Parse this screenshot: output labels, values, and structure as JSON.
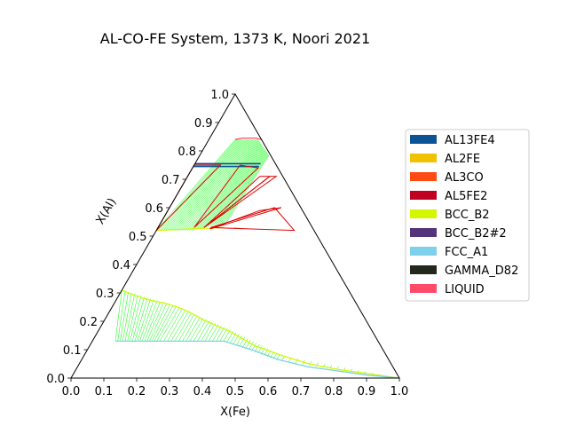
{
  "chart_data": {
    "type": "ternary-phase-diagram",
    "title": "AL-CO-FE System, 1373 K, Noori 2021",
    "xlabel": "X(Fe)",
    "ylabel": "X(Al)",
    "xlim": [
      0,
      1
    ],
    "ylim": [
      0,
      1
    ],
    "x_ticks": [
      "0.0",
      "0.1",
      "0.2",
      "0.3",
      "0.4",
      "0.5",
      "0.6",
      "0.7",
      "0.8",
      "0.9",
      "1.0"
    ],
    "y_ticks": [
      "0.0",
      "0.1",
      "0.2",
      "0.3",
      "0.4",
      "0.5",
      "0.6",
      "0.7",
      "0.8",
      "0.9",
      "1.0"
    ],
    "legend_position": "right",
    "legend": [
      {
        "name": "AL13FE4",
        "color": "#0b5394"
      },
      {
        "name": "AL2FE",
        "color": "#f2c200"
      },
      {
        "name": "AL3CO",
        "color": "#ff4a12"
      },
      {
        "name": "AL5FE2",
        "color": "#c0001f"
      },
      {
        "name": "BCC_B2",
        "color": "#d4f700"
      },
      {
        "name": "BCC_B2#2",
        "color": "#55337a"
      },
      {
        "name": "FCC_A1",
        "color": "#7fd0ea"
      },
      {
        "name": "GAMMA_D82",
        "color": "#22281a"
      },
      {
        "name": "LIQUID",
        "color": "#ff4a6a"
      }
    ],
    "tieline_color": "#00ff00",
    "tieline_regions": [
      {
        "name": "FCC_A1 + BCC_B2",
        "end_a": [
          [
            0.07,
            0.13
          ],
          [
            0.2,
            0.13
          ],
          [
            0.4,
            0.13
          ],
          [
            0.6,
            0.06
          ],
          [
            1.0,
            0.0
          ]
        ],
        "end_b": [
          [
            0.0,
            0.31
          ],
          [
            0.2,
            0.25
          ],
          [
            0.4,
            0.17
          ],
          [
            0.6,
            0.08
          ],
          [
            1.0,
            0.0
          ]
        ],
        "count": 70
      },
      {
        "name": "LIQUID + BCC_B2",
        "end_a": [
          [
            0.08,
            0.84
          ],
          [
            0.15,
            0.84
          ],
          [
            0.21,
            0.785
          ]
        ],
        "end_b": [
          [
            0.0,
            0.52
          ],
          [
            0.11,
            0.52
          ],
          [
            0.2,
            0.55
          ]
        ],
        "count": 40
      }
    ],
    "phase_boundaries": [
      {
        "phase": "BCC_B2",
        "color": "#d4f700",
        "points": [
          [
            0.0,
            0.31
          ],
          [
            0.05,
            0.29
          ],
          [
            0.1,
            0.275
          ],
          [
            0.15,
            0.265
          ],
          [
            0.2,
            0.25
          ],
          [
            0.25,
            0.23
          ],
          [
            0.3,
            0.205
          ],
          [
            0.35,
            0.185
          ],
          [
            0.4,
            0.165
          ],
          [
            0.45,
            0.14
          ],
          [
            0.5,
            0.115
          ],
          [
            0.6,
            0.08
          ],
          [
            0.7,
            0.05
          ],
          [
            0.8,
            0.03
          ],
          [
            0.9,
            0.015
          ],
          [
            1.0,
            0.0
          ]
        ]
      },
      {
        "phase": "FCC_A1",
        "color": "#7fd0ea",
        "points": [
          [
            0.07,
            0.13
          ],
          [
            0.1,
            0.13
          ],
          [
            0.2,
            0.13
          ],
          [
            0.3,
            0.13
          ],
          [
            0.4,
            0.13
          ],
          [
            0.5,
            0.1
          ],
          [
            0.6,
            0.065
          ],
          [
            0.7,
            0.04
          ],
          [
            0.8,
            0.025
          ],
          [
            0.9,
            0.01
          ],
          [
            1.0,
            0.0
          ]
        ]
      },
      {
        "phase": "BCC_B2",
        "color": "#d4f700",
        "points": [
          [
            0.0,
            0.52
          ],
          [
            0.1,
            0.525
          ],
          [
            0.2,
            0.53
          ]
        ]
      },
      {
        "phase": "BCC_B2",
        "color": "#d4f700",
        "points": [
          [
            0.23,
            0.53
          ],
          [
            0.26,
            0.525
          ]
        ]
      },
      {
        "phase": "LIQUID",
        "color": "#ff4a6a",
        "points": [
          [
            0.08,
            0.84
          ],
          [
            0.1,
            0.845
          ],
          [
            0.14,
            0.845
          ],
          [
            0.16,
            0.84
          ]
        ]
      },
      {
        "phase": "AL13FE4",
        "color": "#0b5394",
        "points": [
          [
            0.0,
            0.755
          ],
          [
            0.1,
            0.755
          ],
          [
            0.2,
            0.755
          ]
        ]
      },
      {
        "phase": "AL13FE4",
        "color": "#0b5394",
        "points": [
          [
            0.0,
            0.745
          ],
          [
            0.1,
            0.745
          ],
          [
            0.2,
            0.745
          ]
        ]
      }
    ],
    "three_phase_triangles": [
      {
        "color": "#e00000",
        "points": [
          [
            0.0,
            0.52
          ],
          [
            0.08,
            0.75
          ],
          [
            0.0,
            0.75
          ]
        ]
      },
      {
        "color": "#e00000",
        "points": [
          [
            0.11,
            0.53
          ],
          [
            0.14,
            0.75
          ],
          [
            0.2,
            0.74
          ]
        ]
      },
      {
        "color": "#e00000",
        "points": [
          [
            0.14,
            0.53
          ],
          [
            0.25,
            0.71
          ],
          [
            0.22,
            0.71
          ]
        ]
      },
      {
        "color": "#e00000",
        "points": [
          [
            0.14,
            0.53
          ],
          [
            0.25,
            0.71
          ],
          [
            0.27,
            0.71
          ]
        ]
      },
      {
        "color": "#e00000",
        "points": [
          [
            0.16,
            0.53
          ],
          [
            0.32,
            0.6
          ],
          [
            0.42,
            0.52
          ]
        ]
      },
      {
        "color": "#e00000",
        "points": [
          [
            0.16,
            0.525
          ],
          [
            0.28,
            0.59
          ],
          [
            0.34,
            0.6
          ]
        ]
      }
    ]
  }
}
